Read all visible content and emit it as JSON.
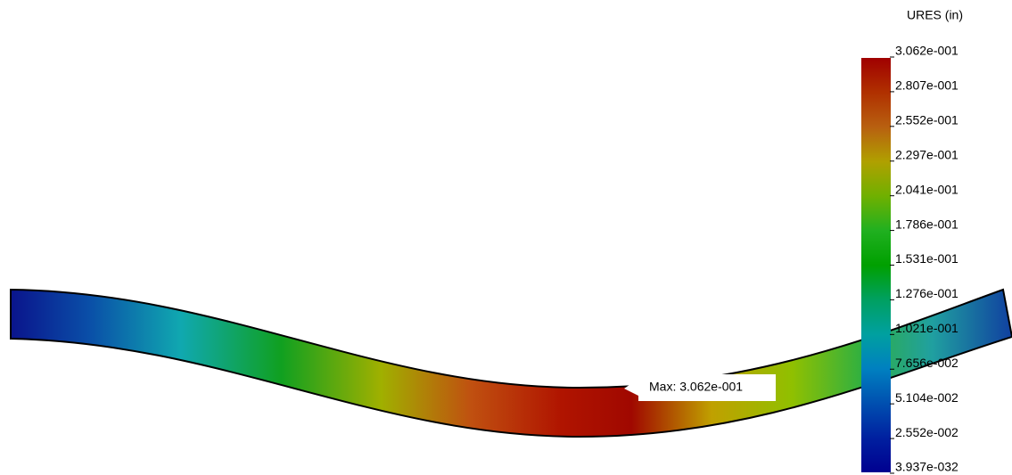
{
  "legend": {
    "title": "URES (in)",
    "labels": [
      "3.062e-001",
      "2.807e-001",
      "2.552e-001",
      "2.297e-001",
      "2.041e-001",
      "1.786e-001",
      "1.531e-001",
      "1.276e-001",
      "1.021e-001",
      "7.656e-002",
      "5.104e-002",
      "2.552e-002",
      "3.937e-032"
    ]
  },
  "annotation": {
    "label": "Max: 3.062e-001"
  }
}
